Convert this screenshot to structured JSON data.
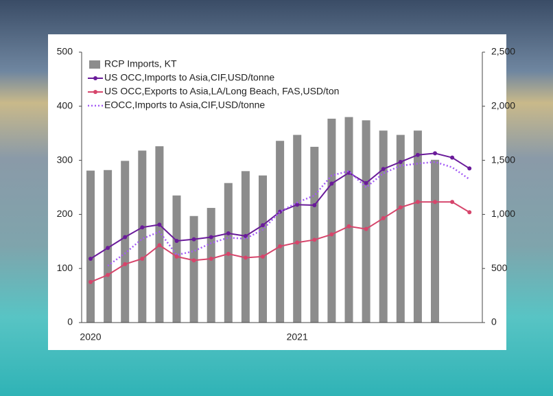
{
  "chart_data": {
    "type": "combo",
    "categories": [
      "2020",
      null,
      null,
      null,
      null,
      null,
      null,
      null,
      null,
      null,
      null,
      null,
      "2021",
      null,
      null,
      null,
      null,
      null,
      null,
      null,
      null,
      null,
      null
    ],
    "ylim": [
      0,
      500
    ],
    "yticks": [
      0,
      100,
      200,
      300,
      400,
      500
    ],
    "y2lim": [
      0,
      2500
    ],
    "y2ticks": [
      0,
      500,
      {
        "value": 1000,
        "label": "1,000"
      },
      {
        "value": 1500,
        "label": "1,500"
      },
      {
        "value": 2000,
        "label": "2,000"
      },
      {
        "value": 2500,
        "label": "2,500"
      }
    ],
    "series": [
      {
        "name": "RCP Imports, KT",
        "type": "bar",
        "axis": "y2",
        "color": "#8c8c8c",
        "values": [
          1405,
          1410,
          1495,
          1590,
          1630,
          1175,
          985,
          1060,
          1290,
          1400,
          1360,
          1680,
          1735,
          1625,
          1885,
          1900,
          1870,
          1775,
          1735,
          1775,
          1505,
          null,
          null
        ]
      },
      {
        "name": "US OCC,Imports to Asia,CIF,USD/tonne",
        "type": "line",
        "color": "#6a1b9a",
        "markers": true,
        "values": [
          118,
          138,
          158,
          176,
          181,
          151,
          154,
          158,
          165,
          160,
          180,
          205,
          218,
          217,
          257,
          277,
          258,
          284,
          297,
          310,
          313,
          305,
          285
        ]
      },
      {
        "name": "US OCC,Exports to Asia,LA/Long Beach, FAS,USD/ton",
        "type": "line",
        "color": "#d6456b",
        "markers": true,
        "values": [
          75,
          88,
          108,
          118,
          143,
          122,
          115,
          118,
          127,
          120,
          122,
          141,
          148,
          153,
          163,
          178,
          173,
          193,
          213,
          223,
          223,
          223,
          204
        ]
      },
      {
        "name": "EOCC,Imports to Asia,CIF,USD/tonne",
        "type": "line",
        "color": "#a45cf5",
        "dotted": true,
        "values": [
          null,
          105,
          128,
          155,
          168,
          125,
          132,
          147,
          157,
          155,
          172,
          205,
          222,
          235,
          272,
          280,
          250,
          276,
          290,
          294,
          297,
          287,
          265
        ]
      }
    ]
  }
}
